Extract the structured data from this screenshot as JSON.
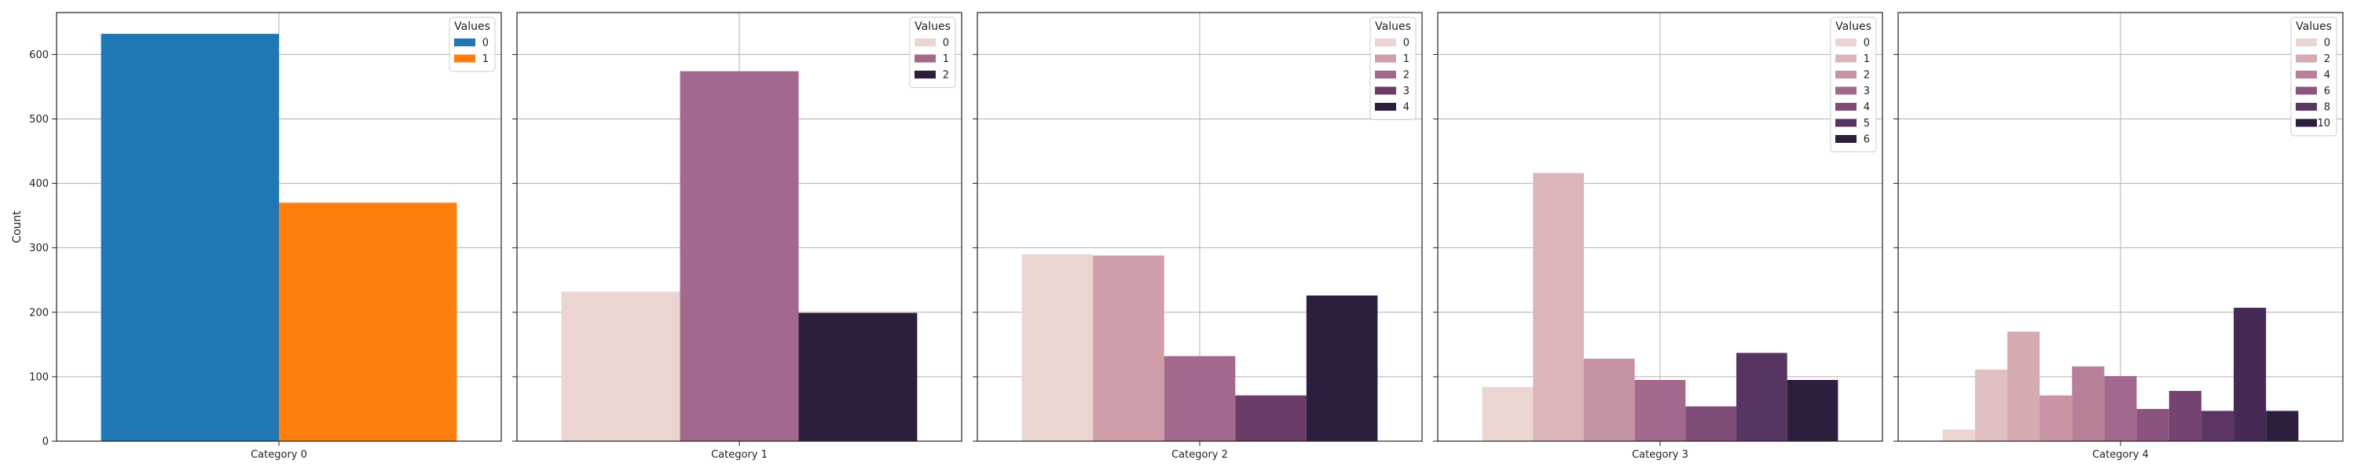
{
  "chart_data": {
    "type": "bar",
    "ylabel": "Count",
    "ylim": [
      0,
      665
    ],
    "yticks": [
      0,
      100,
      200,
      300,
      400,
      500,
      600
    ],
    "grid": true,
    "legend_title": "Values",
    "legend_placement": "top-right",
    "shared_y": true,
    "panels": [
      {
        "xlabel": "Category 0",
        "bars": [
          {
            "value": "0",
            "count": 632,
            "color": "#1f77b4"
          },
          {
            "value": "1",
            "count": 370,
            "color": "#ff7f0e"
          }
        ]
      },
      {
        "xlabel": "Category 1",
        "bars": [
          {
            "value": "0",
            "count": 232,
            "color": "#ebd5d0"
          },
          {
            "value": "1",
            "count": 574,
            "color": "#a3698c"
          },
          {
            "value": "2",
            "count": 199,
            "color": "#2d1e3e"
          }
        ]
      },
      {
        "xlabel": "Category 2",
        "bars": [
          {
            "value": "0",
            "count": 290,
            "color": "#ebd5d0"
          },
          {
            "value": "1",
            "count": 288,
            "color": "#cf9ea8"
          },
          {
            "value": "2",
            "count": 132,
            "color": "#a3698c"
          },
          {
            "value": "3",
            "count": 71,
            "color": "#6b3c68"
          },
          {
            "value": "4",
            "count": 226,
            "color": "#2d1e3e"
          }
        ]
      },
      {
        "xlabel": "Category 3",
        "bars": [
          {
            "value": "0",
            "count": 84,
            "color": "#ebd5d0"
          },
          {
            "value": "1",
            "count": 416,
            "color": "#dbb5b7"
          },
          {
            "value": "2",
            "count": 128,
            "color": "#c594a2"
          },
          {
            "value": "3",
            "count": 95,
            "color": "#a3698c"
          },
          {
            "value": "4",
            "count": 54,
            "color": "#7f4b77"
          },
          {
            "value": "5",
            "count": 137,
            "color": "#573562"
          },
          {
            "value": "6",
            "count": 95,
            "color": "#2d1e3e"
          }
        ]
      },
      {
        "xlabel": "Category 4",
        "bars": [
          {
            "value": "0",
            "count": 18,
            "color": "#ebd5d0",
            "legend": true
          },
          {
            "value": "1",
            "count": 111,
            "color": "#e0c0c0",
            "legend": false
          },
          {
            "value": "2",
            "count": 170,
            "color": "#d5aab1",
            "legend": true
          },
          {
            "value": "3",
            "count": 71,
            "color": "#c995a4",
            "legend": false
          },
          {
            "value": "4",
            "count": 116,
            "color": "#b87f98",
            "legend": true
          },
          {
            "value": "5",
            "count": 101,
            "color": "#a3698c",
            "legend": false
          },
          {
            "value": "6",
            "count": 50,
            "color": "#8b5480",
            "legend": true
          },
          {
            "value": "7",
            "count": 78,
            "color": "#744372",
            "legend": false
          },
          {
            "value": "8",
            "count": 47,
            "color": "#5c3565",
            "legend": true
          },
          {
            "value": "9",
            "count": 207,
            "color": "#452a55",
            "legend": false
          },
          {
            "value": "10",
            "count": 47,
            "color": "#2d1e3e",
            "legend": true
          }
        ]
      }
    ]
  }
}
